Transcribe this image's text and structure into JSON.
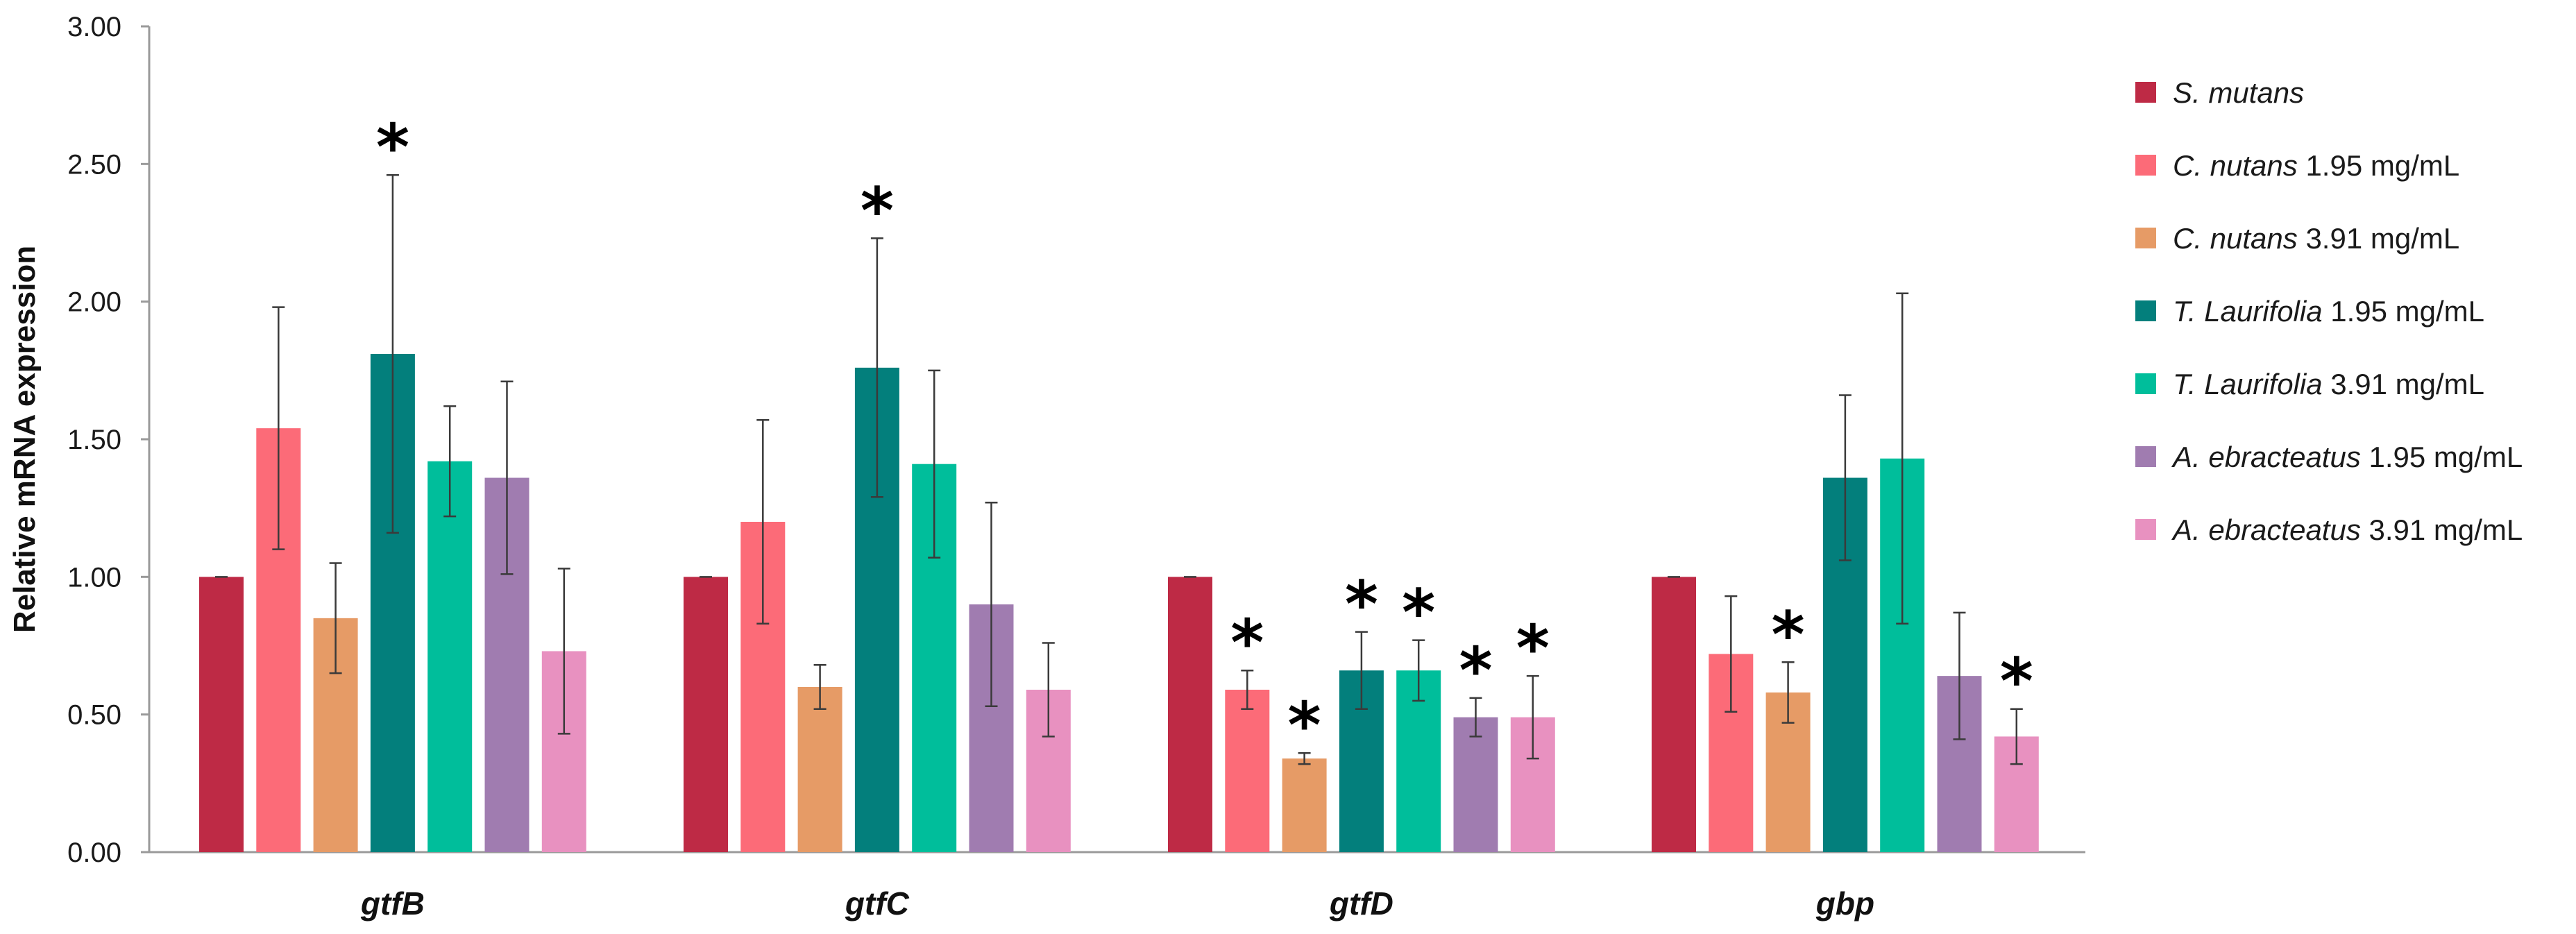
{
  "chart_data": {
    "type": "bar",
    "title": "",
    "xlabel": "",
    "ylabel": "Relative mRNA expression",
    "ylim": [
      0,
      3
    ],
    "yticks": [
      "0.00",
      "0.50",
      "1.00",
      "1.50",
      "2.00",
      "2.50",
      "3.00"
    ],
    "categories": [
      "gtfB",
      "gtfC",
      "gtfD",
      "gbp"
    ],
    "significance_marker": "*",
    "legend_position": "right",
    "series": [
      {
        "name": "S. mutans",
        "italic": "S. mutans",
        "suffix": "",
        "color": "#BE2A45",
        "values": [
          1.0,
          1.0,
          1.0,
          1.0
        ],
        "errors": [
          0.0,
          0.0,
          0.0,
          0.0
        ],
        "significant": [
          false,
          false,
          false,
          false
        ]
      },
      {
        "name": "C. nutans 1.95 mg/mL",
        "italic": "C. nutans",
        "suffix": "1.95 mg/mL",
        "color": "#FC6B78",
        "values": [
          1.54,
          1.2,
          0.59,
          0.72
        ],
        "errors": [
          0.44,
          0.37,
          0.07,
          0.21
        ],
        "significant": [
          false,
          false,
          true,
          false
        ]
      },
      {
        "name": "C. nutans 3.91 mg/mL",
        "italic": "C. nutans",
        "suffix": "3.91 mg/mL",
        "color": "#E69B66",
        "values": [
          0.85,
          0.6,
          0.34,
          0.58
        ],
        "errors": [
          0.2,
          0.08,
          0.02,
          0.11
        ],
        "significant": [
          false,
          false,
          true,
          true
        ]
      },
      {
        "name": "T. Laurifolia 1.95 mg/mL",
        "italic": "T. Laurifolia",
        "suffix": "1.95 mg/mL",
        "color": "#037F7C",
        "values": [
          1.81,
          1.76,
          0.66,
          1.36
        ],
        "errors": [
          0.65,
          0.47,
          0.14,
          0.3
        ],
        "significant": [
          true,
          true,
          true,
          false
        ]
      },
      {
        "name": "T. Laurifolia 3.91 mg/mL",
        "italic": "T. Laurifolia",
        "suffix": "3.91 mg/mL",
        "color": "#00BE9B",
        "values": [
          1.42,
          1.41,
          0.66,
          1.43
        ],
        "errors": [
          0.2,
          0.34,
          0.11,
          0.6
        ],
        "significant": [
          false,
          false,
          true,
          false
        ]
      },
      {
        "name": "A. ebracteatus 1.95 mg/mL",
        "italic": "A. ebracteatus",
        "suffix": "1.95 mg/mL",
        "color": "#A07CB0",
        "values": [
          1.36,
          0.9,
          0.49,
          0.64
        ],
        "errors": [
          0.35,
          0.37,
          0.07,
          0.23
        ],
        "significant": [
          false,
          false,
          true,
          false
        ]
      },
      {
        "name": "A. ebracteatus 3.91 mg/mL",
        "italic": "A. ebracteatus",
        "suffix": "3.91 mg/mL",
        "color": "#E891C0",
        "values": [
          0.73,
          0.59,
          0.49,
          0.42
        ],
        "errors": [
          0.3,
          0.17,
          0.15,
          0.1
        ],
        "significant": [
          false,
          false,
          true,
          true
        ]
      }
    ]
  }
}
